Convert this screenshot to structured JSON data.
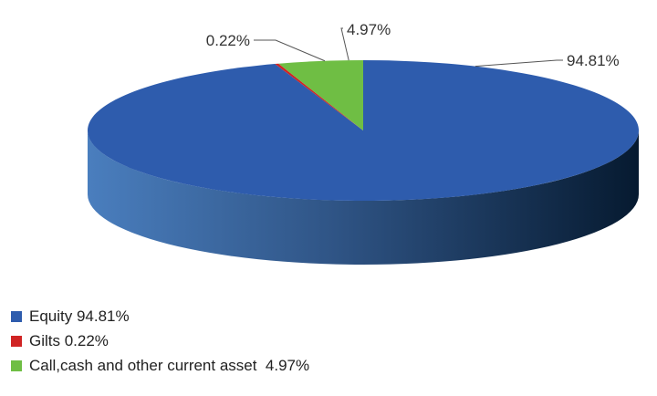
{
  "chart_data": {
    "type": "pie",
    "style": "3d",
    "slices": [
      {
        "name": "Equity",
        "value": 94.81,
        "label": "94.81%",
        "legend": "Equity 94.81%",
        "color": "#2E5CAD"
      },
      {
        "name": "Gilts",
        "value": 0.22,
        "label": "0.22%",
        "legend": "Gilts 0.22%",
        "color": "#D02424"
      },
      {
        "name": "Call,cash and other current asset",
        "value": 4.97,
        "label": "4.97%",
        "legend": "Call,cash and other current asset  4.97%",
        "color": "#6FBE44"
      }
    ],
    "legend_position": "bottom-left"
  }
}
